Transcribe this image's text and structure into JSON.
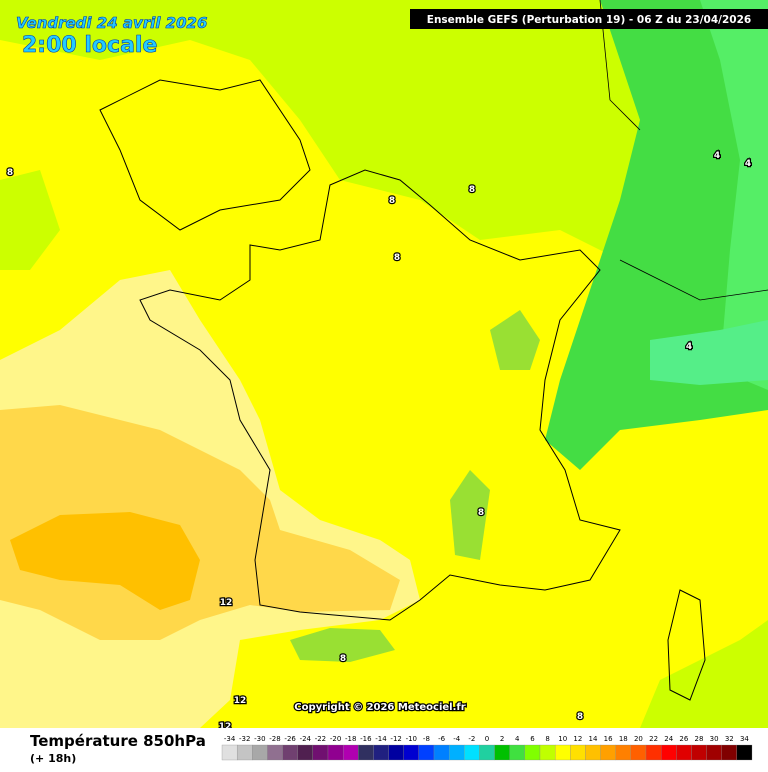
{
  "header": {
    "date": "Vendredi 24 avril 2026",
    "time": "2:00 locale",
    "run": "Ensemble GEFS  (Perturbation 19)  -  06 Z du 23/04/2026"
  },
  "copyright": "Copyright © 2026 Meteociel.fr",
  "legend": {
    "title": "Température 850hPa",
    "lead": "(+ 18h)",
    "labels": [
      "-34",
      "-32",
      "-30",
      "-28",
      "-26",
      "-24",
      "-22",
      "-20",
      "-18",
      "-16",
      "-14",
      "-12",
      "-10",
      "-8",
      "-6",
      "-4",
      "-2",
      "0",
      "2",
      "4",
      "6",
      "8",
      "10",
      "12",
      "14",
      "16",
      "18",
      "20",
      "22",
      "24",
      "26",
      "28",
      "30",
      "32",
      "34"
    ],
    "colors": [
      "#e0e0e0",
      "#c4c4c4",
      "#a8a8a8",
      "#907090",
      "#704070",
      "#502050",
      "#701070",
      "#900090",
      "#b000b0",
      "#303060",
      "#202080",
      "#0000a0",
      "#0000d0",
      "#0040ff",
      "#0080ff",
      "#00b0ff",
      "#00e0ff",
      "#20d0a0",
      "#00c000",
      "#40e040",
      "#80ff00",
      "#c0ff00",
      "#ffff00",
      "#ffe000",
      "#ffc000",
      "#ffa000",
      "#ff8000",
      "#ff6000",
      "#ff3000",
      "#ff0000",
      "#e00000",
      "#c00000",
      "#a00000",
      "#800000",
      "#000000"
    ]
  },
  "contour_labels": [
    "8",
    "4",
    "4",
    "8",
    "8",
    "8",
    "4",
    "8",
    "12",
    "8",
    "12",
    "12",
    "8"
  ]
}
